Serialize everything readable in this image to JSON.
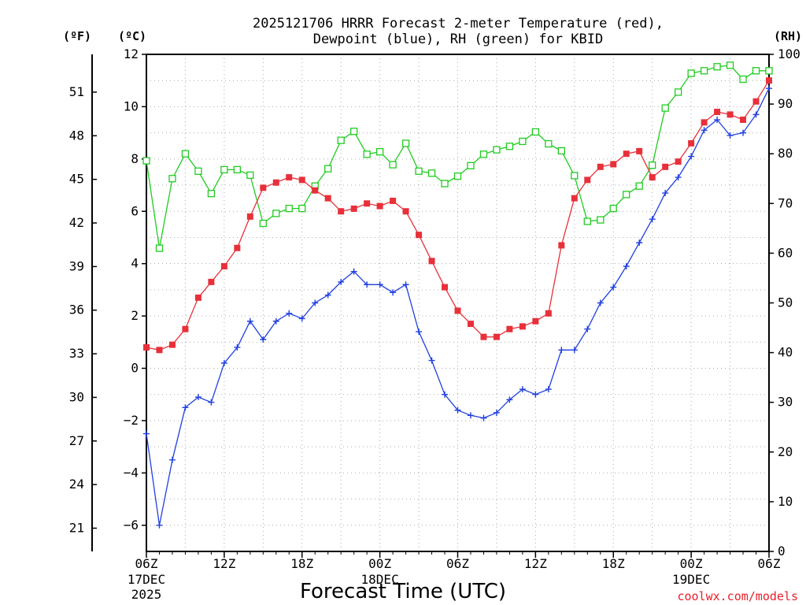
{
  "title_line1": "2025121706 HRRR Forecast 2-meter Temperature (red),",
  "title_line2": "Dewpoint (blue), RH (green) for KBID",
  "left_outer_unit": "(ºF)",
  "left_inner_unit": "(ºC)",
  "right_unit": "(RH)",
  "xlabel": "Forecast Time (UTC)",
  "credit": "coolwx.com/models",
  "colors": {
    "temperature": "#e8303a",
    "dewpoint": "#2040e0",
    "rh": "#20cc20",
    "grid": "#aaaaaa"
  },
  "chart_data": {
    "type": "line",
    "x_hours_from_start": [
      0,
      1,
      2,
      3,
      4,
      5,
      6,
      7,
      8,
      9,
      10,
      11,
      12,
      13,
      14,
      15,
      16,
      17,
      18,
      19,
      20,
      21,
      22,
      23,
      24,
      25,
      26,
      27,
      28,
      29,
      30,
      31,
      32,
      33,
      34,
      35,
      36,
      37,
      38,
      39,
      40,
      41,
      42,
      43,
      44,
      45,
      46,
      47,
      48
    ],
    "x_ticks": [
      {
        "hour": 0,
        "label": "06Z",
        "sub1": "17DEC",
        "sub2": "2025"
      },
      {
        "hour": 6,
        "label": "12Z",
        "sub1": "",
        "sub2": ""
      },
      {
        "hour": 12,
        "label": "18Z",
        "sub1": "",
        "sub2": ""
      },
      {
        "hour": 18,
        "label": "00Z",
        "sub1": "18DEC",
        "sub2": ""
      },
      {
        "hour": 24,
        "label": "06Z",
        "sub1": "",
        "sub2": ""
      },
      {
        "hour": 30,
        "label": "12Z",
        "sub1": "",
        "sub2": ""
      },
      {
        "hour": 36,
        "label": "18Z",
        "sub1": "",
        "sub2": ""
      },
      {
        "hour": 42,
        "label": "00Z",
        "sub1": "19DEC",
        "sub2": ""
      },
      {
        "hour": 48,
        "label": "06Z",
        "sub1": "",
        "sub2": ""
      }
    ],
    "y_celsius_range": [
      -7,
      12
    ],
    "y_celsius_ticks": [
      -6,
      -4,
      -2,
      0,
      2,
      4,
      6,
      8,
      10,
      12
    ],
    "y_fahrenheit_ticks": [
      21,
      24,
      27,
      30,
      33,
      36,
      39,
      42,
      45,
      48,
      51
    ],
    "y_rh_range": [
      0,
      100
    ],
    "y_rh_ticks": [
      0,
      10,
      20,
      30,
      40,
      50,
      60,
      70,
      80,
      90,
      100
    ],
    "grid": true,
    "series": [
      {
        "name": "Temperature",
        "axis": "celsius",
        "marker": "filled-square",
        "values": [
          0.8,
          0.7,
          0.9,
          1.5,
          2.7,
          3.3,
          3.9,
          4.6,
          5.8,
          6.9,
          7.1,
          7.3,
          7.2,
          6.8,
          6.5,
          6.0,
          6.1,
          6.3,
          6.2,
          6.4,
          6.0,
          5.1,
          4.1,
          3.1,
          2.2,
          1.7,
          1.2,
          1.2,
          1.5,
          1.6,
          1.8,
          2.1,
          4.7,
          6.5,
          7.2,
          7.7,
          7.8,
          8.2,
          8.3,
          7.3,
          7.7,
          7.9,
          8.6,
          9.4,
          9.8,
          9.7,
          9.5,
          10.2,
          11.0
        ]
      },
      {
        "name": "Dewpoint",
        "axis": "celsius",
        "marker": "plus",
        "values": [
          -2.5,
          -6.0,
          -3.5,
          -1.5,
          -1.1,
          -1.3,
          0.2,
          0.8,
          1.8,
          1.1,
          1.8,
          2.1,
          1.9,
          2.5,
          2.8,
          3.3,
          3.7,
          3.2,
          3.2,
          2.9,
          3.2,
          1.4,
          0.3,
          -1.0,
          -1.6,
          -1.8,
          -1.9,
          -1.7,
          -1.2,
          -0.8,
          -1.0,
          -0.8,
          0.7,
          0.7,
          1.5,
          2.5,
          3.1,
          3.9,
          4.8,
          5.7,
          6.7,
          7.3,
          8.1,
          9.1,
          9.5,
          8.9,
          9.0,
          9.7,
          10.7
        ]
      },
      {
        "name": "RH",
        "axis": "rh",
        "marker": "open-square",
        "values": [
          78.6,
          61.0,
          75.0,
          80.0,
          76.5,
          72.0,
          76.8,
          76.8,
          75.7,
          66.0,
          68.0,
          69.0,
          69.0,
          73.5,
          77.0,
          82.7,
          84.5,
          79.9,
          80.4,
          77.8,
          82.1,
          76.5,
          76.1,
          74.0,
          75.5,
          77.6,
          79.9,
          80.8,
          81.5,
          82.5,
          84.4,
          82.0,
          80.6,
          75.6,
          66.4,
          66.7,
          69.0,
          71.8,
          73.5,
          77.7,
          89.2,
          92.4,
          96.2,
          96.7,
          97.5,
          97.8,
          95.0,
          96.7,
          96.7
        ]
      }
    ]
  }
}
